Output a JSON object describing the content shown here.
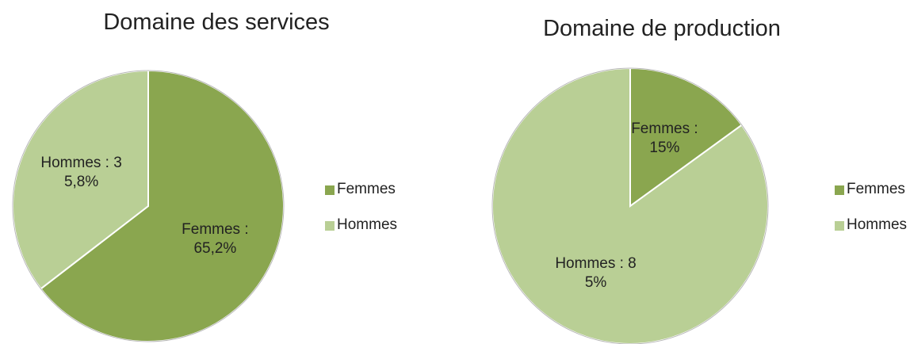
{
  "chart_data": [
    {
      "type": "pie",
      "title": "Domaine des services",
      "categories": [
        "Femmes",
        "Hommes"
      ],
      "values": [
        65.2,
        35.8
      ],
      "value_labels": [
        "Femmes :  65,2%",
        "Hommes : 35,8%"
      ],
      "colors": [
        "#8aa64f",
        "#b9cf95"
      ],
      "legend": "right"
    },
    {
      "type": "pie",
      "title": "Domaine de production",
      "categories": [
        "Femmes",
        "Hommes"
      ],
      "values": [
        15,
        85
      ],
      "value_labels": [
        "Femmes : 15%",
        "Hommes : 85%"
      ],
      "colors": [
        "#8aa64f",
        "#b9cf95"
      ],
      "legend": "right"
    }
  ]
}
